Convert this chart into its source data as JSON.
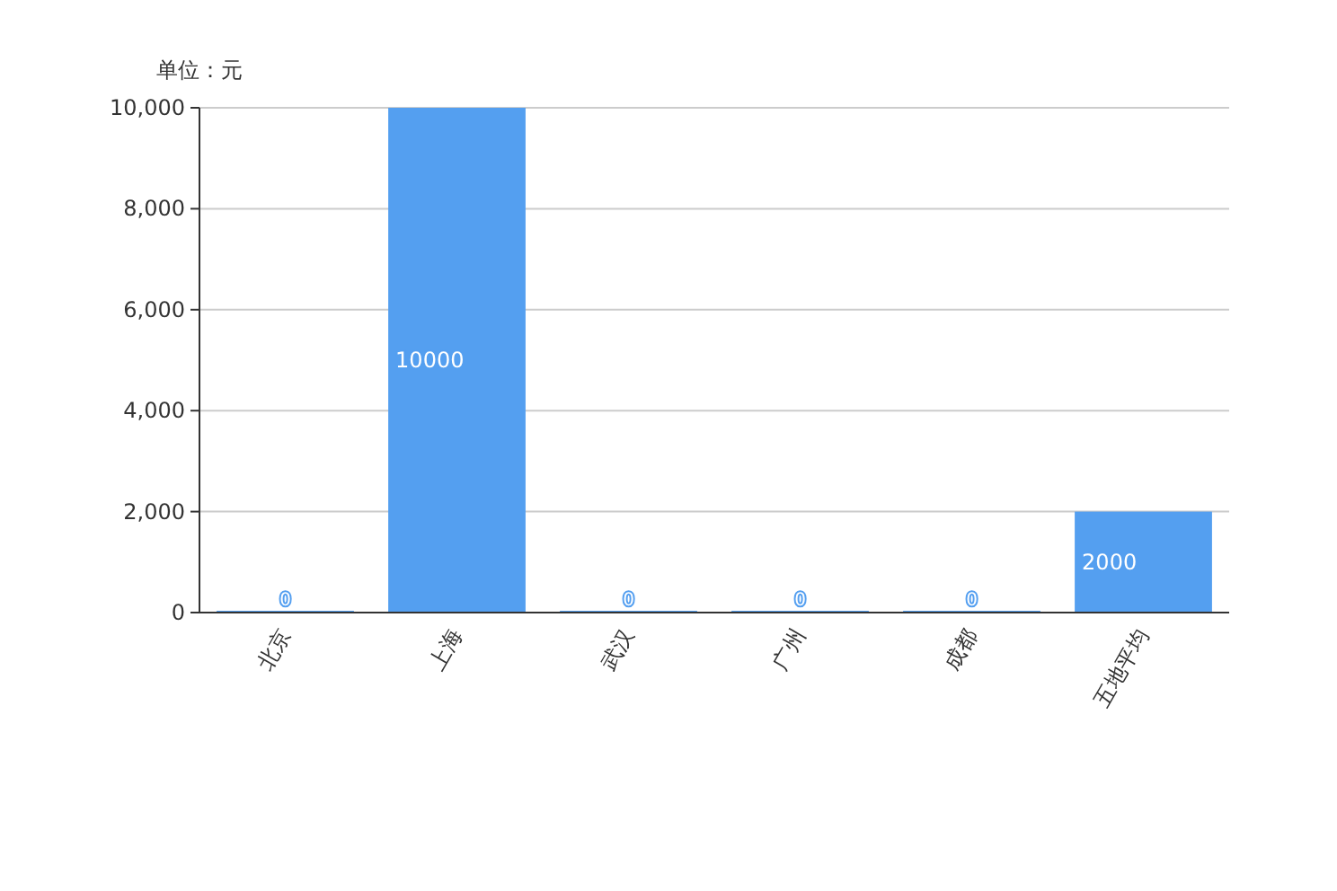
{
  "chart_data": {
    "type": "bar",
    "ylabel": "单位：元",
    "categories": [
      "北京",
      "上海",
      "武汉",
      "广州",
      "成都",
      "五地平均"
    ],
    "series": [
      {
        "color": "#549ff0",
        "values": [
          0,
          10000,
          0,
          0,
          0,
          2000
        ]
      }
    ],
    "ylim": [
      0,
      10000
    ],
    "yticks": [
      {
        "value": 0,
        "label": "0"
      },
      {
        "value": 2000,
        "label": "2,000"
      },
      {
        "value": 4000,
        "label": "4,000"
      },
      {
        "value": 6000,
        "label": "6,000"
      },
      {
        "value": 8000,
        "label": "8,000"
      },
      {
        "value": 10000,
        "label": "10,000"
      }
    ],
    "grid": "y",
    "data_labels": true
  }
}
